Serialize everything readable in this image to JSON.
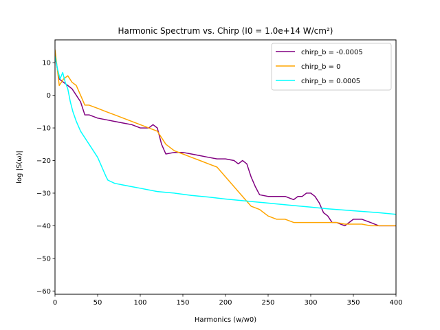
{
  "chart_data": {
    "type": "line",
    "title": "Harmonic Spectrum vs. Chirp (I0 = 1.0e+14 W/cm²)",
    "xlabel": "Harmonics (w/w0)",
    "ylabel": "log |S(ω)|",
    "xlim": [
      0,
      400
    ],
    "ylim": [
      -61,
      17
    ],
    "xticks": [
      0,
      50,
      100,
      150,
      200,
      250,
      300,
      350,
      400
    ],
    "yticks": [
      10,
      0,
      -10,
      -20,
      -30,
      -40,
      -50,
      -60
    ],
    "xtick_labels": [
      "0",
      "50",
      "100",
      "150",
      "200",
      "250",
      "300",
      "350",
      "400"
    ],
    "ytick_labels": [
      "10",
      "0",
      "−10",
      "−20",
      "−30",
      "−40",
      "−50",
      "−60"
    ],
    "grid": false,
    "legend_position": "top-right",
    "series": [
      {
        "name": "chirp_b = -0.0005",
        "color": "#800080",
        "x": [
          0,
          5,
          10,
          15,
          20,
          25,
          30,
          35,
          40,
          50,
          60,
          70,
          80,
          90,
          100,
          110,
          115,
          120,
          125,
          130,
          140,
          150,
          160,
          170,
          180,
          190,
          200,
          210,
          215,
          220,
          225,
          230,
          235,
          240,
          250,
          260,
          270,
          280,
          285,
          290,
          295,
          300,
          305,
          310,
          315,
          320,
          325,
          330,
          340,
          350,
          360,
          370,
          380,
          390,
          400
        ],
        "y": [
          12,
          5,
          4,
          3,
          2,
          0,
          -2,
          -6,
          -6,
          -7,
          -7.5,
          -8,
          -8.5,
          -9,
          -10,
          -10,
          -9,
          -10,
          -15,
          -18,
          -17.5,
          -17.5,
          -18,
          -18.5,
          -19,
          -19.5,
          -19.5,
          -20,
          -21,
          -20,
          -21,
          -25,
          -28,
          -30.5,
          -31,
          -31,
          -31,
          -32,
          -31,
          -31,
          -30,
          -30,
          -31,
          -33,
          -36,
          -37,
          -39,
          -39,
          -40,
          -38,
          -38,
          -39,
          -40,
          -40,
          -40
        ]
      },
      {
        "name": "chirp_b = 0",
        "color": "#ffa500",
        "x": [
          0,
          5,
          10,
          15,
          20,
          25,
          30,
          35,
          40,
          50,
          60,
          70,
          80,
          90,
          100,
          110,
          120,
          125,
          130,
          140,
          150,
          160,
          170,
          180,
          190,
          200,
          210,
          220,
          230,
          240,
          250,
          260,
          270,
          280,
          290,
          300,
          310,
          320,
          330,
          340,
          350,
          360,
          370,
          380,
          390,
          400
        ],
        "y": [
          14,
          3,
          5,
          6,
          4,
          3,
          0,
          -3,
          -3,
          -4,
          -5,
          -6,
          -7,
          -8,
          -9,
          -10,
          -11,
          -13,
          -15,
          -17,
          -18,
          -19,
          -20,
          -21,
          -22,
          -25,
          -28,
          -31,
          -34,
          -35,
          -37,
          -38,
          -38,
          -39,
          -39,
          -39,
          -39,
          -39,
          -39,
          -39.5,
          -39.5,
          -39.5,
          -40,
          -40,
          -40,
          -40
        ]
      },
      {
        "name": "chirp_b = 0.0005",
        "color": "#00ffff",
        "x": [
          0,
          3,
          6,
          9,
          12,
          15,
          18,
          21,
          25,
          30,
          35,
          40,
          45,
          50,
          55,
          60,
          62,
          70,
          80,
          90,
          100,
          120,
          140,
          160,
          180,
          200,
          220,
          240,
          260,
          280,
          300,
          320,
          340,
          360,
          380,
          400
        ],
        "y": [
          12,
          8,
          5,
          7,
          4,
          2,
          -2,
          -5,
          -8,
          -11,
          -13,
          -15,
          -17,
          -19,
          -22,
          -25,
          -26,
          -27,
          -27.5,
          -28,
          -28.5,
          -29.5,
          -30,
          -30.7,
          -31.2,
          -31.8,
          -32.3,
          -32.8,
          -33.3,
          -33.8,
          -34.3,
          -34.8,
          -35.2,
          -35.6,
          -36,
          -36.5
        ]
      }
    ]
  }
}
